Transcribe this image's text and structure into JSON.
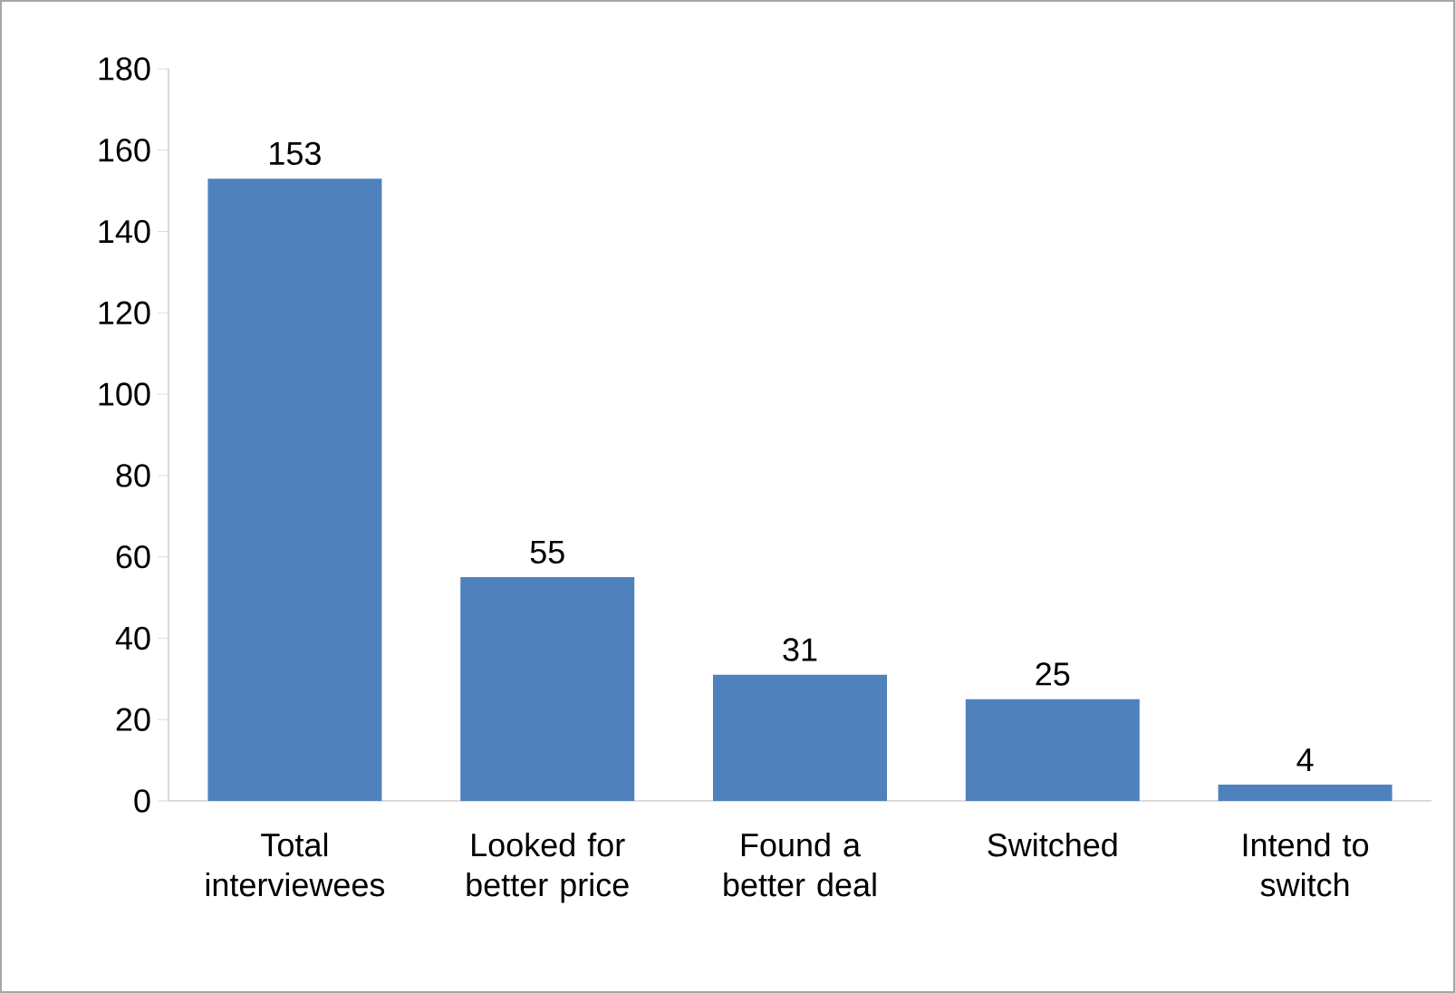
{
  "chart_data": {
    "type": "bar",
    "categories": [
      "Total interviewees",
      "Looked for better price",
      "Found a better deal",
      "Switched",
      "Intend to switch"
    ],
    "values": [
      153,
      55,
      31,
      25,
      4
    ],
    "color": "#4f81bd",
    "ylim": [
      0,
      180
    ],
    "yticks": [
      0,
      20,
      40,
      60,
      80,
      100,
      120,
      140,
      160,
      180
    ],
    "data_labels": true
  }
}
